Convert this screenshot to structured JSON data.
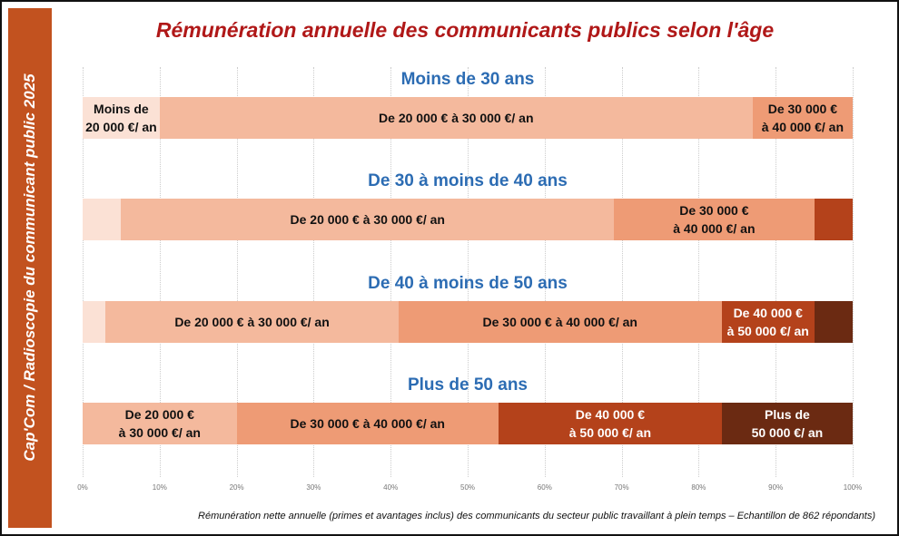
{
  "sidebar": "Cap'Com / Radioscopie du communicant public 2025",
  "chart_data": {
    "type": "stacked-bar-100",
    "title": "Rémunération annuelle des communicants publics selon l'âge",
    "footnote": "Rémunération nette annuelle (primes et avantages inclus) des communicants du secteur public travaillant à plein temps – Echantillon de 862 répondants)",
    "categories": [
      "Moins de 30 ans",
      "De 30 à moins de 40 ans",
      "De 40 à moins de 50 ans",
      "Plus de 50 ans"
    ],
    "xlim": [
      0,
      100
    ],
    "xticks": [
      {
        "value": 0,
        "label": "0%"
      },
      {
        "value": 10,
        "label": "10%"
      },
      {
        "value": 20,
        "label": "20%"
      },
      {
        "value": 30,
        "label": "30%"
      },
      {
        "value": 40,
        "label": "40%"
      },
      {
        "value": 50,
        "label": "50%"
      },
      {
        "value": 60,
        "label": "60%"
      },
      {
        "value": 70,
        "label": "70%"
      },
      {
        "value": 80,
        "label": "80%"
      },
      {
        "value": 90,
        "label": "90%"
      },
      {
        "value": 100,
        "label": "100%"
      }
    ],
    "grid": true,
    "series": [
      {
        "color": "#fbe1d5",
        "label_color": "#111111",
        "values": [
          10,
          5,
          3,
          0
        ],
        "labels": [
          "Moins de\n20 000 €/ an",
          null,
          null,
          null
        ]
      },
      {
        "color": "#f4b99d",
        "label_color": "#111111",
        "values": [
          77,
          64,
          38,
          20
        ],
        "labels": [
          "De 20 000 € à 30 000 €/ an",
          "De 20 000 € à 30 000 €/ an",
          "De 20 000 € à 30 000 €/ an",
          "De 20 000 €\nà 30 000 €/ an"
        ]
      },
      {
        "color": "#ee9b75",
        "label_color": "#111111",
        "values": [
          13,
          26,
          42,
          34
        ],
        "labels": [
          "De 30 000 €\nà 40 000 €/ an",
          "De 30 000 €\nà 40 000 €/ an",
          "De 30 000 € à 40 000 €/ an",
          "De 30 000 € à 40 000 €/ an"
        ]
      },
      {
        "color": "#b4421b",
        "label_color": "#ffffff",
        "values": [
          0,
          5,
          12,
          29
        ],
        "labels": [
          null,
          null,
          "De 40 000 €\nà 50 000 €/ an",
          "De 40 000 €\nà 50 000 €/ an"
        ]
      },
      {
        "color": "#6b2a12",
        "label_color": "#ffffff",
        "values": [
          0,
          0,
          5,
          17
        ],
        "labels": [
          null,
          null,
          null,
          "Plus de\n50 000 €/ an"
        ]
      }
    ]
  }
}
